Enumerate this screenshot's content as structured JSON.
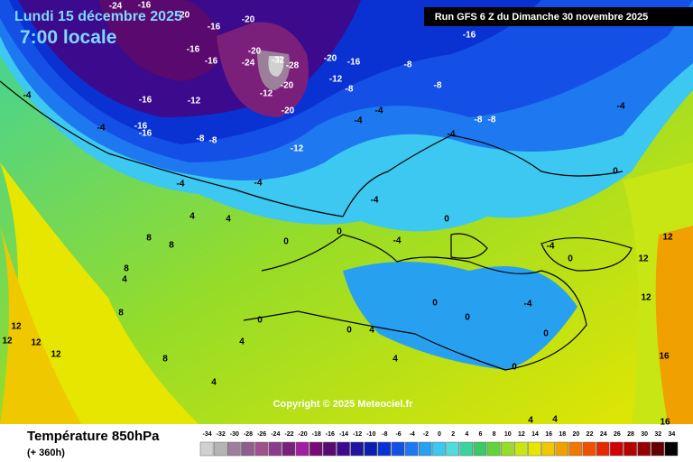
{
  "header": {
    "date": "Lundi 15 décembre 2025",
    "time": "7:00 locale",
    "run": "Run GFS 6 Z du Dimanche 30 novembre 2025"
  },
  "copyright": "Copyright © 2025 Meteociel.fr",
  "legend": {
    "title": "Température 850hPa",
    "subtitle": "(+ 360h)",
    "levels": [
      -34,
      -32,
      -30,
      -28,
      -26,
      -24,
      -22,
      -20,
      -18,
      -16,
      -14,
      -12,
      -10,
      -8,
      -6,
      -4,
      -2,
      0,
      2,
      4,
      6,
      8,
      10,
      12,
      14,
      16,
      18,
      20,
      22,
      24,
      26,
      28,
      30,
      32,
      34
    ],
    "colors": [
      "#d0d0d0",
      "#b4b4b4",
      "#9b7f9b",
      "#8c5f8c",
      "#a0508c",
      "#8c3c8c",
      "#7a1f7a",
      "#a01ea0",
      "#780a78",
      "#5a0a6e",
      "#3c0a8c",
      "#1e14a0",
      "#0a1eb4",
      "#0a32d2",
      "#1450e6",
      "#1e78f0",
      "#28a0f0",
      "#3cc8f0",
      "#50dcdc",
      "#3cd2a0",
      "#3cc864",
      "#64d23c",
      "#96dc28",
      "#c8e614",
      "#e6e600",
      "#f0c800",
      "#f0a000",
      "#f07800",
      "#f05000",
      "#e62800",
      "#d20000",
      "#b40000",
      "#960000",
      "#640000",
      "#000000"
    ]
  },
  "map_labels": [
    -24,
    -16,
    -20,
    -16,
    -20,
    -16,
    -16,
    -20,
    -24,
    -32,
    -28,
    -20,
    -16,
    -12,
    -8,
    -20,
    -12,
    -20,
    -16,
    -12,
    -16,
    -16,
    -8,
    -8,
    -12,
    -16,
    -8,
    -8,
    -8,
    -8,
    -4,
    -4,
    -4,
    -4,
    -4,
    -4,
    -4,
    -4,
    -4,
    -4,
    -4,
    -4,
    4,
    4,
    8,
    8,
    8,
    4,
    8,
    12,
    12,
    12,
    12,
    8,
    4,
    4,
    4,
    4,
    0,
    0,
    0,
    0,
    0,
    0,
    0,
    0,
    0,
    0,
    0,
    4,
    12,
    12,
    12,
    16,
    16,
    4
  ]
}
